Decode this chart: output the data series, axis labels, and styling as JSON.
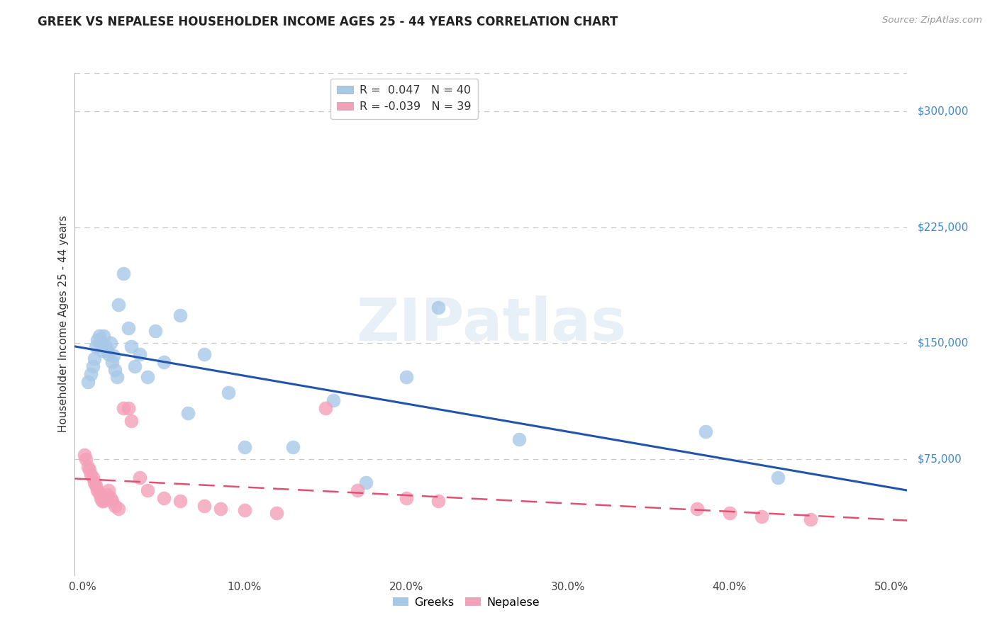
{
  "title": "GREEK VS NEPALESE HOUSEHOLDER INCOME AGES 25 - 44 YEARS CORRELATION CHART",
  "source": "Source: ZipAtlas.com",
  "ylabel": "Householder Income Ages 25 - 44 years",
  "xlabel_ticks": [
    "0.0%",
    "10.0%",
    "20.0%",
    "30.0%",
    "40.0%",
    "50.0%"
  ],
  "xlabel_vals": [
    0.0,
    0.1,
    0.2,
    0.3,
    0.4,
    0.5
  ],
  "ytick_vals": [
    0,
    75000,
    150000,
    225000,
    300000
  ],
  "ytick_labels": [
    "",
    "$75,000",
    "$150,000",
    "$225,000",
    "$300,000"
  ],
  "ylim": [
    0,
    325000
  ],
  "xlim": [
    -0.005,
    0.51
  ],
  "watermark": "ZIPatlas",
  "greeks_x": [
    0.003,
    0.005,
    0.006,
    0.007,
    0.008,
    0.009,
    0.01,
    0.011,
    0.012,
    0.013,
    0.014,
    0.015,
    0.016,
    0.017,
    0.018,
    0.019,
    0.02,
    0.021,
    0.022,
    0.025,
    0.028,
    0.03,
    0.032,
    0.035,
    0.04,
    0.045,
    0.05,
    0.06,
    0.065,
    0.075,
    0.09,
    0.1,
    0.13,
    0.155,
    0.175,
    0.2,
    0.22,
    0.27,
    0.385,
    0.43
  ],
  "greeks_y": [
    125000,
    130000,
    135000,
    140000,
    148000,
    152000,
    155000,
    150000,
    145000,
    155000,
    148000,
    145000,
    143000,
    150000,
    138000,
    142000,
    133000,
    128000,
    175000,
    195000,
    160000,
    148000,
    135000,
    143000,
    128000,
    158000,
    138000,
    168000,
    105000,
    143000,
    118000,
    83000,
    83000,
    113000,
    60000,
    128000,
    173000,
    88000,
    93000,
    63000
  ],
  "nepalese_x": [
    0.001,
    0.002,
    0.003,
    0.004,
    0.005,
    0.006,
    0.007,
    0.008,
    0.009,
    0.01,
    0.011,
    0.012,
    0.013,
    0.014,
    0.015,
    0.016,
    0.017,
    0.018,
    0.02,
    0.022,
    0.025,
    0.028,
    0.03,
    0.035,
    0.04,
    0.05,
    0.06,
    0.075,
    0.085,
    0.1,
    0.12,
    0.15,
    0.17,
    0.2,
    0.22,
    0.38,
    0.4,
    0.42,
    0.45
  ],
  "nepalese_y": [
    78000,
    75000,
    70000,
    68000,
    65000,
    63000,
    60000,
    58000,
    55000,
    53000,
    50000,
    48000,
    48000,
    50000,
    52000,
    55000,
    50000,
    48000,
    45000,
    43000,
    108000,
    108000,
    100000,
    63000,
    55000,
    50000,
    48000,
    45000,
    43000,
    42000,
    40000,
    108000,
    55000,
    50000,
    48000,
    43000,
    40000,
    38000,
    36000
  ],
  "greeks_color": "#a8c8e8",
  "nepalese_color": "#f4a0b8",
  "greeks_line_color": "#2255aa",
  "nepalese_line_color": "#e05070",
  "background_color": "#ffffff",
  "grid_color": "#c8c8c8",
  "title_color": "#222222",
  "axis_label_color": "#333333",
  "right_tick_color": "#4488cc"
}
